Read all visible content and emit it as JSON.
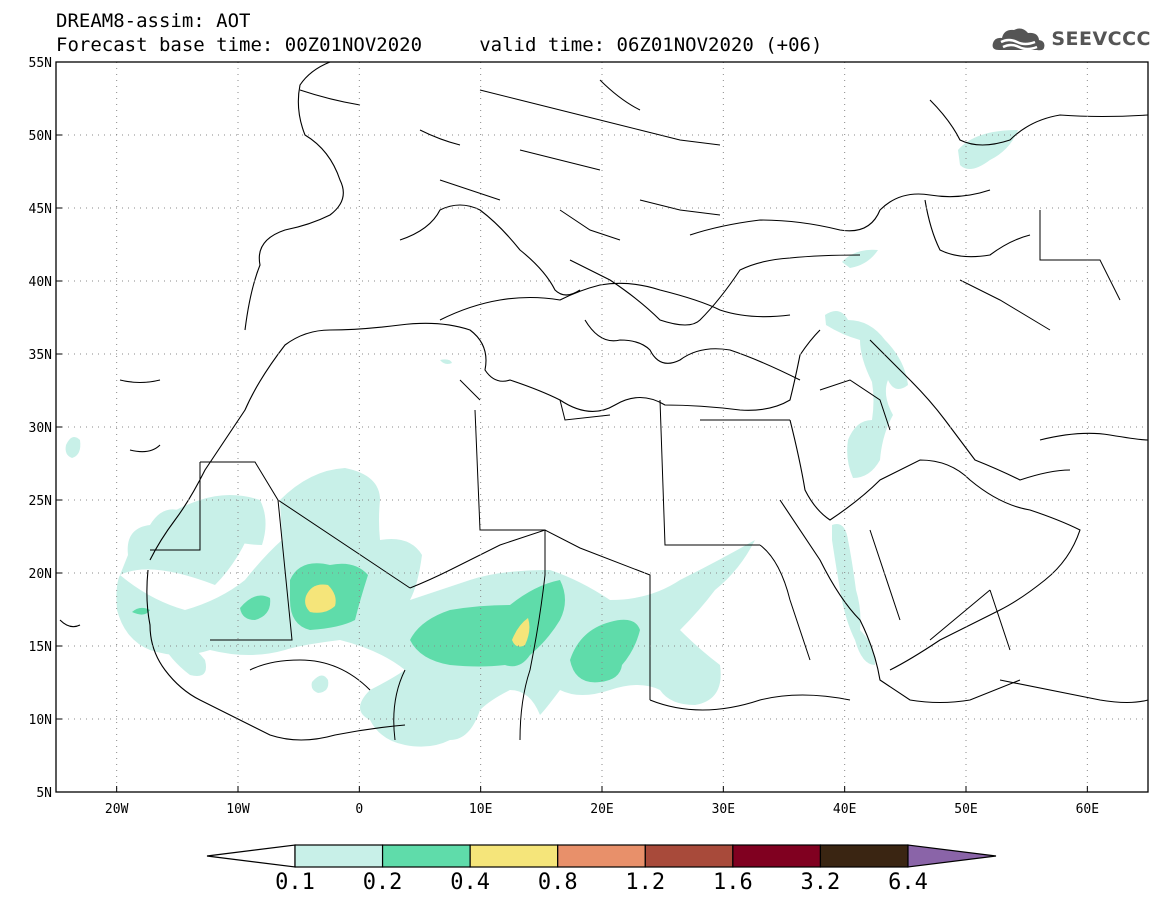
{
  "header": {
    "line1": "DREAM8-assim: AOT",
    "line2": "Forecast base time: 00Z01NOV2020     valid time: 06Z01NOV2020 (+06)",
    "logo_text": "SEEVCCC",
    "logo_icon": "cloud-logo-icon"
  },
  "map": {
    "lon_range": [
      -25,
      65
    ],
    "lat_range": [
      5,
      55
    ],
    "y_ticks": [
      {
        "lat": 55,
        "label": "55N"
      },
      {
        "lat": 50,
        "label": "50N"
      },
      {
        "lat": 45,
        "label": "45N"
      },
      {
        "lat": 40,
        "label": "40N"
      },
      {
        "lat": 35,
        "label": "35N"
      },
      {
        "lat": 30,
        "label": "30N"
      },
      {
        "lat": 25,
        "label": "25N"
      },
      {
        "lat": 20,
        "label": "20N"
      },
      {
        "lat": 15,
        "label": "15N"
      },
      {
        "lat": 10,
        "label": "10N"
      },
      {
        "lat": 5,
        "label": "5N"
      }
    ],
    "x_ticks": [
      {
        "lon": -20,
        "label": "20W"
      },
      {
        "lon": -10,
        "label": "10W"
      },
      {
        "lon": 0,
        "label": "0"
      },
      {
        "lon": 10,
        "label": "10E"
      },
      {
        "lon": 20,
        "label": "20E"
      },
      {
        "lon": 30,
        "label": "30E"
      },
      {
        "lon": 40,
        "label": "40E"
      },
      {
        "lon": 50,
        "label": "50E"
      },
      {
        "lon": 60,
        "label": "60E"
      }
    ],
    "grid": "dotted"
  },
  "legend": {
    "labels": [
      "0.1",
      "0.2",
      "0.4",
      "0.8",
      "1.2",
      "1.6",
      "3.2",
      "6.4"
    ],
    "colors": [
      "#ffffff",
      "#c8f0e8",
      "#5fdcaa",
      "#f5e57a",
      "#e8906a",
      "#a84a3a",
      "#800020",
      "#3a2512",
      "#8a64a8"
    ]
  }
}
